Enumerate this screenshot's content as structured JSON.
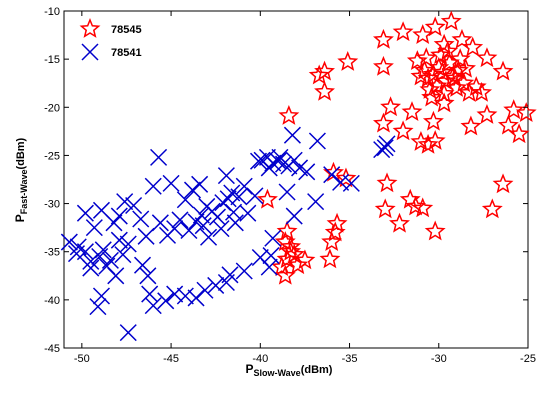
{
  "chart_data": {
    "type": "scatter",
    "xlim": [
      -51,
      -25
    ],
    "ylim": [
      -45,
      -10
    ],
    "x_ticks": [
      -50,
      -45,
      -40,
      -35,
      -30,
      -25
    ],
    "y_ticks": [
      -10,
      -15,
      -20,
      -25,
      -30,
      -35,
      -40,
      -45
    ],
    "x_tick_labels": [
      "-50",
      "-45",
      "-40",
      "-35",
      "-30",
      "-25"
    ],
    "y_tick_labels": [
      "-10",
      "-15",
      "-20",
      "-25",
      "-30",
      "-35",
      "-40",
      "-45"
    ],
    "xlabel": {
      "main": "P",
      "sub": "Slow-Wave",
      "unit": "(dBm)"
    },
    "ylabel": {
      "main": "P",
      "sub": "Fast-Wave",
      "unit": "(dBm)"
    },
    "grid": false,
    "legend_position": "top-left",
    "series": [
      {
        "name": "78545",
        "marker": "star",
        "color": "#ff0000",
        "points": [
          [
            -30.9,
            -12.5
          ],
          [
            -30.2,
            -11.7
          ],
          [
            -29.3,
            -11.1
          ],
          [
            -32.0,
            -12.2
          ],
          [
            -33.1,
            -13.0
          ],
          [
            -33.1,
            -15.8
          ],
          [
            -28.1,
            -13.8
          ],
          [
            -29.7,
            -13.5
          ],
          [
            -27.3,
            -14.9
          ],
          [
            -35.1,
            -15.3
          ],
          [
            -36.7,
            -16.7
          ],
          [
            -36.4,
            -16.3
          ],
          [
            -36.4,
            -18.4
          ],
          [
            -31.2,
            -15.2
          ],
          [
            -30.8,
            -16.2
          ],
          [
            -30.6,
            -17.0
          ],
          [
            -30.3,
            -16.6
          ],
          [
            -30.0,
            -15.9
          ],
          [
            -29.8,
            -16.4
          ],
          [
            -29.6,
            -17.3
          ],
          [
            -29.4,
            -15.4
          ],
          [
            -29.2,
            -16.8
          ],
          [
            -29.0,
            -18.0
          ],
          [
            -28.8,
            -15.0
          ],
          [
            -28.6,
            -17.5
          ],
          [
            -30.5,
            -18.2
          ],
          [
            -30.1,
            -17.8
          ],
          [
            -29.9,
            -14.6
          ],
          [
            -29.5,
            -14.2
          ],
          [
            -28.9,
            -16.2
          ],
          [
            -29.1,
            -17.0
          ],
          [
            -30.7,
            -14.9
          ],
          [
            -31.0,
            -16.8
          ],
          [
            -28.5,
            -16.0
          ],
          [
            -28.3,
            -18.5
          ],
          [
            -30.4,
            -19.0
          ],
          [
            -29.7,
            -18.6
          ],
          [
            -28.7,
            -13.0
          ],
          [
            -26.4,
            -16.3
          ],
          [
            -27.9,
            -17.9
          ],
          [
            -27.6,
            -18.5
          ],
          [
            -25.8,
            -20.3
          ],
          [
            -25.1,
            -20.6
          ],
          [
            -26.1,
            -21.9
          ],
          [
            -25.5,
            -22.8
          ],
          [
            -30.3,
            -21.5
          ],
          [
            -31.5,
            -20.5
          ],
          [
            -32.7,
            -20.0
          ],
          [
            -33.1,
            -21.7
          ],
          [
            -32.0,
            -22.5
          ],
          [
            -27.3,
            -20.8
          ],
          [
            -28.2,
            -22.0
          ],
          [
            -29.7,
            -19.6
          ],
          [
            -31.0,
            -23.6
          ],
          [
            -30.6,
            -23.9
          ],
          [
            -30.2,
            -23.5
          ],
          [
            -26.4,
            -28.0
          ],
          [
            -27.0,
            -30.6
          ],
          [
            -30.2,
            -32.9
          ],
          [
            -30.9,
            -30.5
          ],
          [
            -31.6,
            -29.6
          ],
          [
            -31.3,
            -30.3
          ],
          [
            -32.2,
            -32.1
          ],
          [
            -33.0,
            -30.6
          ],
          [
            -35.7,
            -32.1
          ],
          [
            -32.9,
            -27.9
          ],
          [
            -35.9,
            -26.8
          ],
          [
            -35.2,
            -27.4
          ],
          [
            -38.4,
            -20.9
          ],
          [
            -39.6,
            -29.6
          ],
          [
            -38.5,
            -32.9
          ],
          [
            -38.6,
            -34.0
          ],
          [
            -38.3,
            -35.0
          ],
          [
            -38.5,
            -35.8
          ],
          [
            -38.8,
            -36.6
          ],
          [
            -38.3,
            -34.5
          ],
          [
            -38.1,
            -35.3
          ],
          [
            -37.5,
            -35.9
          ],
          [
            -37.9,
            -36.4
          ],
          [
            -38.6,
            -37.5
          ],
          [
            -36.0,
            -34.0
          ],
          [
            -36.1,
            -35.8
          ],
          [
            -35.8,
            -33.0
          ]
        ]
      },
      {
        "name": "78541",
        "marker": "x",
        "color": "#0000cc",
        "points": [
          [
            -50.7,
            -34.0
          ],
          [
            -50.2,
            -34.5
          ],
          [
            -49.8,
            -35.0
          ],
          [
            -49.5,
            -36.0
          ],
          [
            -49.0,
            -35.5
          ],
          [
            -48.8,
            -34.8
          ],
          [
            -48.6,
            -36.5
          ],
          [
            -48.4,
            -35.9
          ],
          [
            -48.1,
            -37.5
          ],
          [
            -47.9,
            -33.8
          ],
          [
            -47.7,
            -35.3
          ],
          [
            -47.4,
            -34.2
          ],
          [
            -49.8,
            -31.0
          ],
          [
            -49.3,
            -32.5
          ],
          [
            -48.9,
            -30.7
          ],
          [
            -48.2,
            -32.0
          ],
          [
            -47.9,
            -31.3
          ],
          [
            -47.6,
            -29.8
          ],
          [
            -47.1,
            -30.2
          ],
          [
            -46.7,
            -31.6
          ],
          [
            -46.4,
            -33.4
          ],
          [
            -46.0,
            -28.2
          ],
          [
            -45.7,
            -25.2
          ],
          [
            -45.0,
            -27.9
          ],
          [
            -45.6,
            -32.0
          ],
          [
            -45.2,
            -33.3
          ],
          [
            -44.8,
            -32.6
          ],
          [
            -44.5,
            -31.7
          ],
          [
            -44.0,
            -32.8
          ],
          [
            -43.6,
            -31.9
          ],
          [
            -43.3,
            -31.2
          ],
          [
            -43.0,
            -30.3
          ],
          [
            -42.7,
            -30.8
          ],
          [
            -42.4,
            -31.4
          ],
          [
            -42.1,
            -29.9
          ],
          [
            -41.8,
            -29.5
          ],
          [
            -41.5,
            -30.9
          ],
          [
            -41.2,
            -29.3
          ],
          [
            -43.2,
            -32.3
          ],
          [
            -42.9,
            -33.5
          ],
          [
            -42.2,
            -32.6
          ],
          [
            -41.4,
            -32.0
          ],
          [
            -40.7,
            -31.0
          ],
          [
            -40.3,
            -29.2
          ],
          [
            -44.2,
            -29.6
          ],
          [
            -43.8,
            -28.6
          ],
          [
            -43.4,
            -28.0
          ],
          [
            -41.9,
            -27.1
          ],
          [
            -41.6,
            -28.9
          ],
          [
            -40.9,
            -28.2
          ],
          [
            -40.1,
            -25.6
          ],
          [
            -39.9,
            -25.5
          ],
          [
            -39.6,
            -25.2
          ],
          [
            -39.3,
            -25.8
          ],
          [
            -39.0,
            -25.6
          ],
          [
            -38.7,
            -25.9
          ],
          [
            -38.4,
            -26.1
          ],
          [
            -38.1,
            -25.5
          ],
          [
            -37.8,
            -26.3
          ],
          [
            -38.9,
            -25.2
          ],
          [
            -39.5,
            -26.3
          ],
          [
            -38.2,
            -22.9
          ],
          [
            -36.8,
            -23.5
          ],
          [
            -37.4,
            -26.7
          ],
          [
            -36.0,
            -27.0
          ],
          [
            -35.5,
            -27.8
          ],
          [
            -34.9,
            -27.9
          ],
          [
            -33.2,
            -24.4
          ],
          [
            -33.0,
            -24.2
          ],
          [
            -32.9,
            -23.8
          ],
          [
            -38.5,
            -28.8
          ],
          [
            -36.9,
            -29.8
          ],
          [
            -38.1,
            -31.3
          ],
          [
            -39.3,
            -33.6
          ],
          [
            -39.4,
            -35.4
          ],
          [
            -40.0,
            -35.6
          ],
          [
            -39.5,
            -36.6
          ],
          [
            -40.9,
            -37.0
          ],
          [
            -41.7,
            -37.4
          ],
          [
            -41.9,
            -38.2
          ],
          [
            -42.5,
            -38.5
          ],
          [
            -43.1,
            -39.0
          ],
          [
            -43.6,
            -39.8
          ],
          [
            -44.2,
            -39.6
          ],
          [
            -44.8,
            -39.4
          ],
          [
            -45.3,
            -40.1
          ],
          [
            -46.2,
            -39.4
          ],
          [
            -46.6,
            -36.4
          ],
          [
            -46.3,
            -37.5
          ],
          [
            -46.0,
            -40.6
          ],
          [
            -47.4,
            -43.4
          ],
          [
            -48.9,
            -39.6
          ],
          [
            -49.1,
            -40.7
          ],
          [
            -49.5,
            -36.7
          ],
          [
            -50.3,
            -35.2
          ]
        ]
      }
    ]
  }
}
